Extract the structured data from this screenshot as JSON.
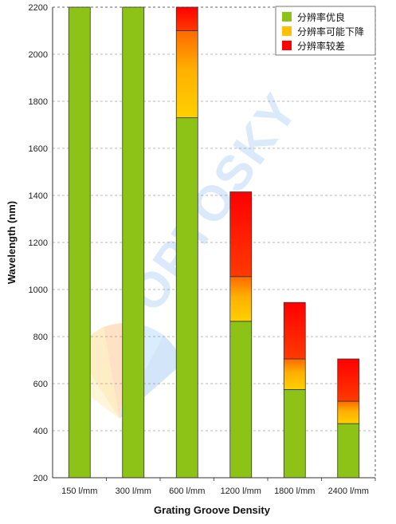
{
  "chart_data": {
    "type": "bar",
    "stacked": true,
    "xlabel": "Grating Groove Density",
    "ylabel": "Wavelength (nm)",
    "ylim": [
      200,
      2200
    ],
    "yticks": [
      200,
      400,
      600,
      800,
      1000,
      1200,
      1400,
      1600,
      1800,
      2000,
      2200
    ],
    "grid": "horizontal dashed",
    "legend_position": "top-right",
    "categories": [
      "150 l/mm",
      "300 l/mm",
      "600 l/mm",
      "1200 l/mm",
      "1800 l/mm",
      "2400 l/mm"
    ],
    "series": [
      {
        "name": "分辨率优良",
        "color": "#8cc316",
        "from": [
          200,
          200,
          200,
          200,
          200,
          200
        ],
        "to": [
          2200,
          2200,
          1730,
          865,
          575,
          430
        ]
      },
      {
        "name": "分辨率可能下降",
        "color": "#ffc000",
        "from": [
          null,
          null,
          1730,
          865,
          575,
          430
        ],
        "to": [
          null,
          null,
          2100,
          1055,
          705,
          525
        ]
      },
      {
        "name": "分辨率较差",
        "color": "#ff0000",
        "from": [
          null,
          null,
          2100,
          1055,
          705,
          525
        ],
        "to": [
          null,
          null,
          2200,
          1415,
          945,
          705
        ]
      }
    ]
  },
  "watermark": "OPTOSKY"
}
